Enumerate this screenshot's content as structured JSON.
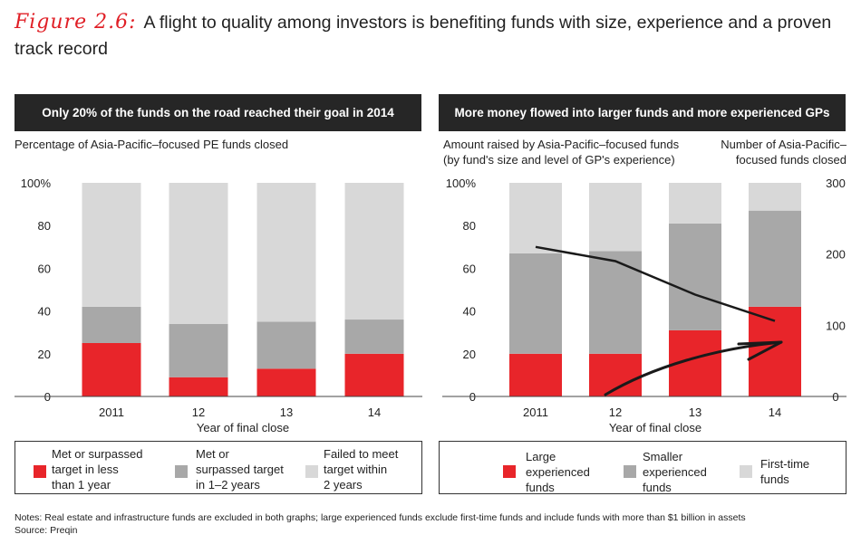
{
  "header": {
    "figure_label": "Figure 2.6:",
    "title_text": "A flight to quality among investors is benefiting funds with size, experience and a proven track record"
  },
  "left_panel": {
    "banner": "Only 20% of the funds on the road reached their goal in 2014",
    "subtitle": "Percentage of Asia-Pacific–focused PE funds closed",
    "xlabel": "Year of final close",
    "legend": [
      {
        "label_lines": [
          "Met or surpassed",
          "target in less",
          "than 1 year"
        ],
        "color": "#e8252a"
      },
      {
        "label_lines": [
          "Met or",
          "surpassed target",
          "in 1–2 years"
        ],
        "color": "#a8a8a8"
      },
      {
        "label_lines": [
          "Failed to meet",
          "target within",
          "2 years"
        ],
        "color": "#d8d8d8"
      }
    ]
  },
  "right_panel": {
    "banner": "More money flowed into larger funds and more experienced GPs",
    "subtitle_left_line1": "Amount raised by Asia-Pacific–focused funds",
    "subtitle_left_line2": "(by fund's size and level of GP's experience)",
    "subtitle_right_line1": "Number of Asia-Pacific–",
    "subtitle_right_line2": "focused funds closed",
    "xlabel": "Year of final close",
    "legend": [
      {
        "label_lines": [
          "Large",
          "experienced",
          "funds"
        ],
        "color": "#e8252a"
      },
      {
        "label_lines": [
          "Smaller",
          "experienced",
          "funds"
        ],
        "color": "#a8a8a8"
      },
      {
        "label_lines": [
          "First-time",
          "funds"
        ],
        "color": "#d8d8d8"
      }
    ]
  },
  "chart_data": [
    {
      "type": "bar",
      "stacked": true,
      "title": "Only 20% of the funds on the road reached their goal in 2014",
      "ylabel": "Percentage of Asia-Pacific–focused PE funds closed",
      "xlabel": "Year of final close",
      "categories": [
        "2011",
        "12",
        "13",
        "14"
      ],
      "ylim": [
        0,
        100
      ],
      "yticks": [
        "0",
        "20",
        "40",
        "60",
        "80",
        "100%"
      ],
      "series": [
        {
          "name": "Met or surpassed target in less than 1 year",
          "color": "#e8252a",
          "values": [
            25,
            9,
            13,
            20
          ]
        },
        {
          "name": "Met or surpassed target in 1–2 years",
          "color": "#a8a8a8",
          "values": [
            17,
            25,
            22,
            16
          ]
        },
        {
          "name": "Failed to meet target within 2 years",
          "color": "#d8d8d8",
          "values": [
            58,
            66,
            65,
            64
          ]
        }
      ]
    },
    {
      "type": "bar",
      "stacked": true,
      "title": "More money flowed into larger funds and more experienced GPs",
      "ylabel": "Amount raised by Asia-Pacific–focused funds (by fund's size and level of GP's experience)",
      "y2label": "Number of Asia-Pacific–focused funds closed",
      "xlabel": "Year of final close",
      "categories": [
        "2011",
        "12",
        "13",
        "14"
      ],
      "ylim": [
        0,
        100
      ],
      "y2lim": [
        0,
        300
      ],
      "yticks": [
        "0",
        "20",
        "40",
        "60",
        "80",
        "100%"
      ],
      "y2ticks": [
        "0",
        "100",
        "200",
        "300"
      ],
      "series": [
        {
          "name": "Large experienced funds",
          "color": "#e8252a",
          "values": [
            20,
            20,
            31,
            42
          ]
        },
        {
          "name": "Smaller experienced funds",
          "color": "#a8a8a8",
          "values": [
            47,
            48,
            50,
            45
          ]
        },
        {
          "name": "First-time funds",
          "color": "#d8d8d8",
          "values": [
            33,
            32,
            19,
            13
          ]
        }
      ],
      "line_series": {
        "name": "Number of funds closed",
        "axis": "right",
        "color": "#1a1a1a",
        "values": [
          210,
          190,
          143,
          106
        ]
      }
    }
  ],
  "notes": {
    "line1": "Notes: Real estate and infrastructure funds are excluded in both graphs; large experienced funds exclude first-time funds and include funds with more than $1 billion in assets",
    "line2": "Source: Preqin"
  }
}
